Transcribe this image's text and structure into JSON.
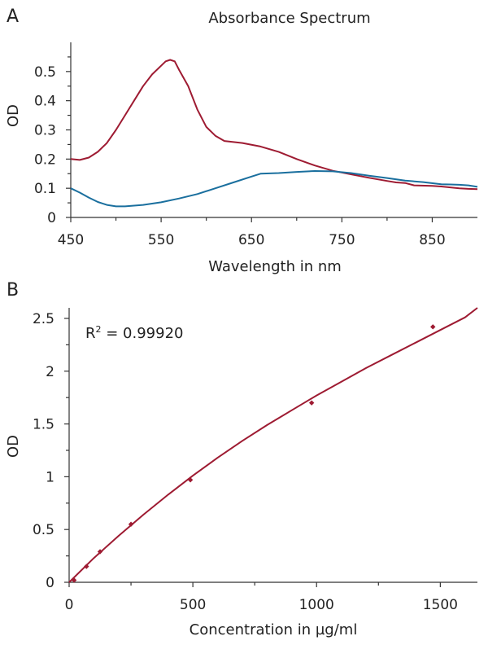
{
  "chart_data": [
    {
      "panel": "A",
      "type": "line",
      "title": "Absorbance Spectrum",
      "xlabel": "Wavelength in nm",
      "ylabel": "OD",
      "xlim": [
        450,
        900
      ],
      "ylim": [
        0,
        0.6
      ],
      "xticks": [
        450,
        550,
        650,
        750,
        850
      ],
      "yticks": [
        0,
        0.1,
        0.2,
        0.3,
        0.4,
        0.5
      ],
      "ytick_labels": [
        "0",
        "0.1",
        "0.2",
        "0.3",
        "0.4",
        "0.5"
      ],
      "series": [
        {
          "color": "#9e1b32",
          "x": [
            450,
            460,
            470,
            480,
            490,
            500,
            510,
            520,
            530,
            540,
            550,
            555,
            560,
            565,
            570,
            580,
            590,
            600,
            610,
            620,
            640,
            660,
            680,
            700,
            720,
            740,
            760,
            780,
            800,
            810,
            820,
            830,
            850,
            860,
            870,
            880,
            890,
            900
          ],
          "y": [
            0.2,
            0.197,
            0.205,
            0.225,
            0.255,
            0.3,
            0.35,
            0.4,
            0.45,
            0.49,
            0.52,
            0.535,
            0.54,
            0.535,
            0.505,
            0.45,
            0.37,
            0.31,
            0.28,
            0.262,
            0.255,
            0.243,
            0.225,
            0.2,
            0.178,
            0.16,
            0.148,
            0.136,
            0.125,
            0.12,
            0.118,
            0.11,
            0.108,
            0.106,
            0.103,
            0.1,
            0.098,
            0.097
          ]
        },
        {
          "color": "#1a6f9e",
          "x": [
            450,
            460,
            470,
            480,
            490,
            500,
            510,
            530,
            550,
            570,
            590,
            610,
            630,
            650,
            660,
            680,
            700,
            720,
            740,
            760,
            780,
            800,
            820,
            840,
            860,
            870,
            880,
            890,
            900
          ],
          "y": [
            0.1,
            0.085,
            0.068,
            0.053,
            0.043,
            0.038,
            0.038,
            0.043,
            0.052,
            0.065,
            0.08,
            0.1,
            0.12,
            0.14,
            0.15,
            0.152,
            0.156,
            0.159,
            0.158,
            0.152,
            0.143,
            0.135,
            0.126,
            0.121,
            0.114,
            0.113,
            0.112,
            0.11,
            0.105
          ]
        }
      ]
    },
    {
      "panel": "B",
      "type": "scatter",
      "xlabel": "Concentration in µg/ml",
      "ylabel": "OD",
      "xlim": [
        0,
        1650
      ],
      "ylim": [
        0,
        2.6
      ],
      "xticks": [
        0,
        500,
        1000,
        1500
      ],
      "yticks": [
        0,
        0.5,
        1,
        1.5,
        2,
        2.5
      ],
      "ytick_labels": [
        "0",
        "0.5",
        "1",
        "1.5",
        "2",
        "2.5"
      ],
      "annotation_main": "R",
      "annotation_sup": "2",
      "annotation_rest": " = 0.99920",
      "points": {
        "color": "#9e1b32",
        "x": [
          20,
          70,
          125,
          250,
          490,
          980,
          1470
        ],
        "y": [
          0.02,
          0.15,
          0.29,
          0.55,
          0.97,
          1.7,
          2.42
        ]
      },
      "fit": {
        "color": "#9e1b32",
        "x": [
          0,
          100,
          200,
          300,
          400,
          500,
          600,
          700,
          800,
          900,
          1000,
          1100,
          1200,
          1300,
          1400,
          1500,
          1600,
          1650
        ],
        "y": [
          0.0,
          0.23,
          0.44,
          0.64,
          0.83,
          1.01,
          1.18,
          1.34,
          1.49,
          1.63,
          1.77,
          1.9,
          2.03,
          2.15,
          2.27,
          2.39,
          2.51,
          2.6
        ]
      }
    }
  ]
}
